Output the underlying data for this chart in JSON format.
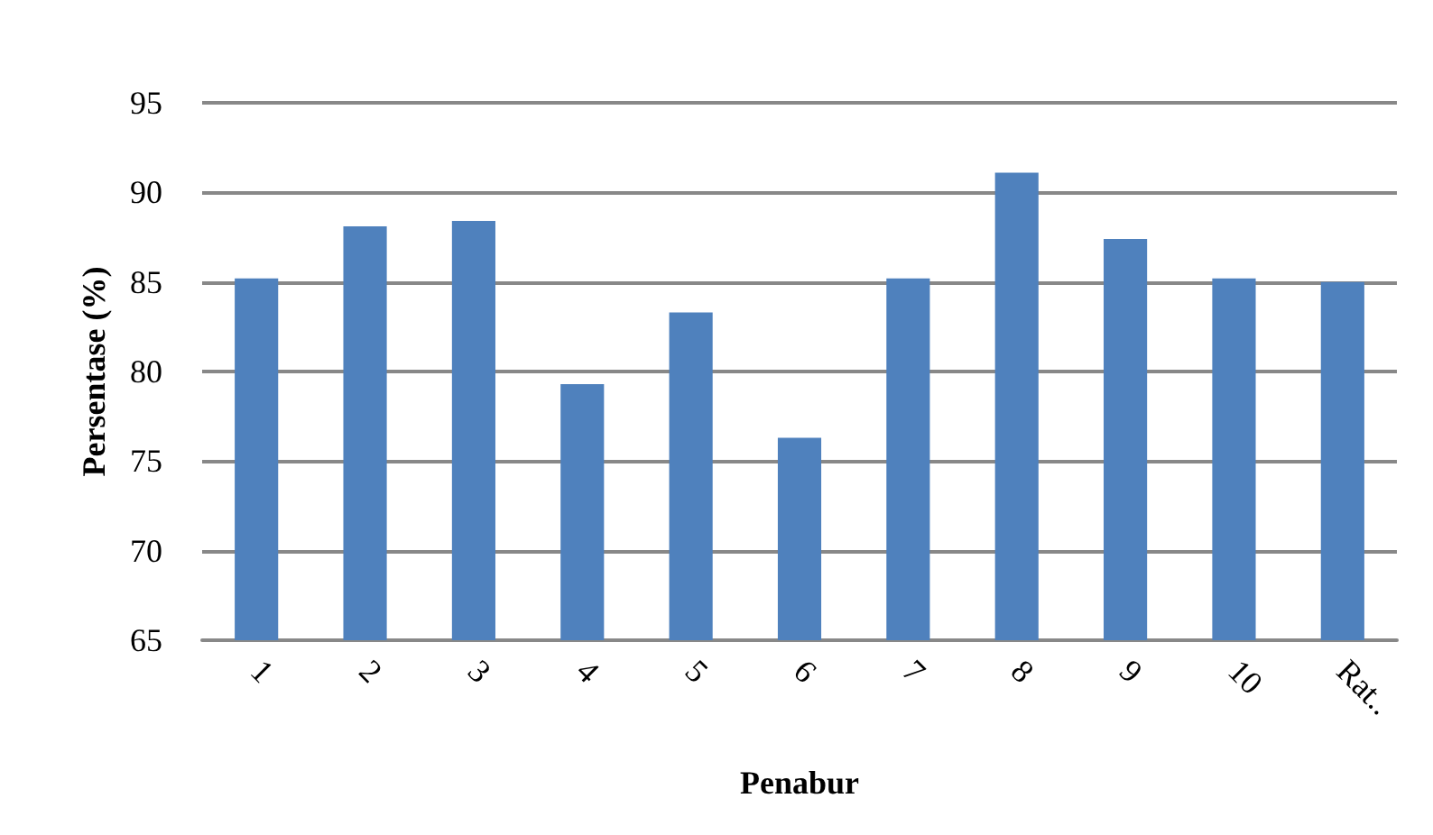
{
  "chart_data": {
    "type": "bar",
    "xlabel": "Penabur",
    "ylabel": "Persentase (%)",
    "categories": [
      "1",
      "2",
      "3",
      "4",
      "5",
      "6",
      "7",
      "8",
      "9",
      "10",
      "Rat.."
    ],
    "values": [
      85.2,
      88.1,
      88.4,
      79.3,
      83.3,
      76.3,
      85.2,
      91.1,
      87.4,
      85.2,
      85.0
    ],
    "color": "#4f81bd",
    "ylim": [
      65,
      95
    ],
    "yticks": [
      65,
      70,
      75,
      80,
      85,
      90,
      95
    ],
    "grid": "y"
  }
}
